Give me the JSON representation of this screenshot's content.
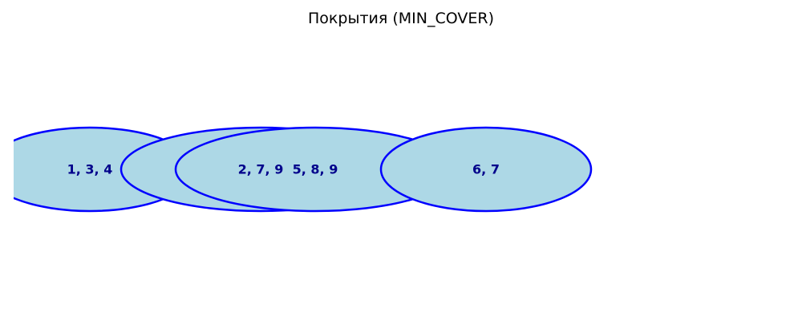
{
  "title": "Покрытия (MIN_COVER)",
  "colors": {
    "fill": "#add8e6",
    "stroke": "#0000ff",
    "label": "#00008b"
  },
  "covers": [
    {
      "label": "1, 3, 4"
    },
    {
      "label": "2, 7, 9"
    },
    {
      "label": "5, 8, 9"
    },
    {
      "label": "6, 7"
    }
  ]
}
